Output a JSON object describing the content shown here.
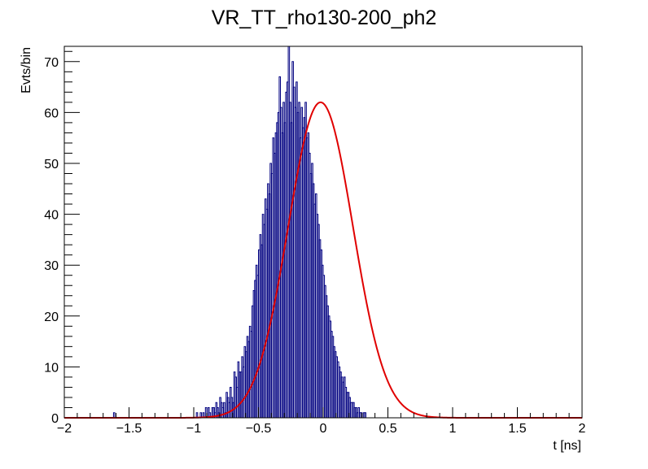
{
  "chart_data": {
    "type": "histogram",
    "title": "VR_TT_rho130-200_ph2",
    "xlabel": "t [ns]",
    "ylabel": "Evts/bin",
    "xlim": [
      -2,
      2
    ],
    "ylim": [
      0,
      73
    ],
    "x_ticks": [
      -2,
      -1.5,
      -1,
      -0.5,
      0,
      0.5,
      1,
      1.5,
      2
    ],
    "x_tick_labels": [
      "−2",
      "−1.5",
      "−1",
      "−0.5",
      "0",
      "0.5",
      "1",
      "1.5",
      "2"
    ],
    "y_ticks": [
      0,
      10,
      20,
      30,
      40,
      50,
      60,
      70
    ],
    "y_tick_labels": [
      "0",
      "10",
      "20",
      "30",
      "40",
      "50",
      "60",
      "70"
    ],
    "grid": false,
    "legend": "none",
    "series": [
      {
        "kind": "histogram",
        "color": "#000080",
        "bin_width": 0.01,
        "bin_centers": [
          -1.615,
          -0.975,
          -0.955,
          -0.945,
          -0.925,
          -0.915,
          -0.905,
          -0.895,
          -0.885,
          -0.875,
          -0.865,
          -0.855,
          -0.845,
          -0.835,
          -0.825,
          -0.815,
          -0.805,
          -0.795,
          -0.785,
          -0.775,
          -0.765,
          -0.755,
          -0.745,
          -0.735,
          -0.725,
          -0.715,
          -0.705,
          -0.695,
          -0.685,
          -0.675,
          -0.665,
          -0.655,
          -0.645,
          -0.635,
          -0.625,
          -0.615,
          -0.605,
          -0.595,
          -0.585,
          -0.575,
          -0.565,
          -0.555,
          -0.545,
          -0.535,
          -0.525,
          -0.515,
          -0.505,
          -0.495,
          -0.485,
          -0.475,
          -0.465,
          -0.455,
          -0.445,
          -0.435,
          -0.425,
          -0.415,
          -0.405,
          -0.395,
          -0.385,
          -0.375,
          -0.365,
          -0.355,
          -0.345,
          -0.335,
          -0.325,
          -0.315,
          -0.305,
          -0.295,
          -0.285,
          -0.275,
          -0.265,
          -0.255,
          -0.245,
          -0.235,
          -0.225,
          -0.215,
          -0.205,
          -0.195,
          -0.185,
          -0.175,
          -0.165,
          -0.155,
          -0.145,
          -0.135,
          -0.125,
          -0.115,
          -0.105,
          -0.095,
          -0.085,
          -0.075,
          -0.065,
          -0.055,
          -0.045,
          -0.035,
          -0.025,
          -0.015,
          -0.005,
          0.005,
          0.015,
          0.025,
          0.035,
          0.045,
          0.055,
          0.065,
          0.075,
          0.085,
          0.095,
          0.105,
          0.115,
          0.125,
          0.135,
          0.145,
          0.155,
          0.165,
          0.175,
          0.185,
          0.195,
          0.205,
          0.215,
          0.225,
          0.235,
          0.245,
          0.255,
          0.265,
          0.275,
          0.285,
          0.295,
          0.305,
          0.315,
          0.325,
          0.335,
          0.345,
          0.355,
          0.365,
          0.375,
          0.385,
          0.395,
          0.405,
          0.415,
          0.425,
          0.435,
          0.445,
          0.455,
          0.465,
          0.475,
          0.485,
          0.495,
          0.505,
          0.515,
          0.525,
          0.535,
          0.545,
          0.555,
          0.565,
          0.575,
          0.585,
          0.595,
          0.605,
          0.615,
          0.625,
          0.635,
          0.645,
          0.655,
          0.665,
          0.675,
          0.685,
          0.695,
          0.705,
          0.715,
          0.725,
          0.735,
          0.745,
          0.755,
          0.765,
          0.775,
          0.785,
          0.795,
          0.805,
          0.815,
          0.825,
          0.835,
          0.845,
          0.855,
          0.865,
          0.875,
          0.885,
          0.895,
          0.905,
          0.915,
          0.925,
          0.935,
          0.945,
          0.955,
          0.965,
          0.975,
          0.985,
          0.995,
          1.005,
          1.015,
          1.025,
          1.035,
          1.045,
          1.055,
          1.065,
          1.075,
          1.085,
          1.095,
          1.105,
          1.115,
          1.125,
          1.135,
          1.145,
          1.155,
          1.165,
          1.175,
          1.185,
          1.195,
          1.205,
          1.215,
          1.225,
          1.235,
          1.245,
          1.255,
          1.265,
          1.275,
          1.285,
          1.295,
          1.305,
          1.315,
          1.325,
          1.335,
          1.345,
          1.355,
          1.365,
          1.375,
          1.385,
          1.395,
          1.405,
          1.415,
          1.425,
          1.435,
          1.445,
          1.455,
          1.465,
          1.475,
          1.485,
          1.495,
          1.505,
          1.515,
          1.525,
          1.535,
          1.545,
          1.555,
          1.565,
          1.575,
          1.585,
          1.595,
          1.605,
          1.615,
          1.625,
          1.635,
          1.645,
          1.655,
          1.665,
          1.675,
          1.685,
          1.695,
          1.705,
          1.715,
          1.725,
          1.735,
          1.745,
          1.755,
          1.765,
          1.775,
          1.785,
          1.795,
          1.805,
          1.815,
          1.825,
          1.835,
          1.845,
          1.855,
          1.865,
          1.875,
          1.885,
          1.895,
          1.905,
          1.915,
          1.925,
          1.935,
          1.945,
          1.955,
          1.965,
          1.975,
          1.985,
          1.995
        ],
        "counts": [
          1,
          1,
          0,
          1,
          1,
          0,
          2,
          0,
          2,
          1,
          0,
          2,
          2,
          1,
          3,
          2,
          1,
          4,
          3,
          2,
          3,
          1,
          5,
          4,
          3,
          6,
          4,
          3,
          9,
          8,
          6,
          11,
          9,
          9,
          12,
          10,
          14,
          13,
          16,
          15,
          18,
          17,
          22,
          25,
          27,
          30,
          28,
          33,
          36,
          34,
          40,
          38,
          43,
          41,
          46,
          44,
          50,
          48,
          55,
          52,
          56,
          58,
          60,
          67,
          61,
          56,
          62,
          58,
          64,
          66,
          73,
          62,
          58,
          70,
          65,
          61,
          66,
          60,
          62,
          55,
          61,
          57,
          59,
          62,
          55,
          56,
          52,
          48,
          50,
          46,
          42,
          44,
          40,
          38,
          35,
          33,
          30,
          28,
          26,
          24,
          22,
          20,
          19,
          17,
          16,
          14,
          13,
          12,
          11,
          10,
          9,
          8,
          7,
          8,
          6,
          5,
          5,
          4,
          3,
          3,
          3,
          2,
          2,
          1,
          2,
          1,
          1,
          0,
          1,
          1,
          0,
          0,
          0,
          0,
          0,
          0,
          0,
          0,
          0,
          0,
          0,
          0,
          0,
          0,
          0,
          0,
          0,
          0,
          0,
          0,
          0,
          0,
          0,
          0,
          0,
          0,
          0,
          0,
          0,
          0,
          0,
          0,
          0,
          0,
          0,
          0,
          0,
          0,
          0,
          0,
          0,
          0,
          0,
          0,
          0,
          0,
          0,
          0,
          0,
          0,
          0,
          0,
          0,
          0,
          0,
          0,
          0,
          0,
          0,
          0,
          0,
          0,
          0,
          0,
          0,
          0,
          0,
          0,
          0,
          0,
          0,
          0,
          0,
          0,
          0,
          0,
          0,
          0,
          0,
          0,
          0,
          0,
          0,
          0,
          0,
          0,
          0,
          0,
          0,
          0,
          0,
          0,
          0,
          0,
          0,
          0,
          0,
          0,
          0,
          0,
          0,
          0,
          0,
          0,
          0,
          0,
          0,
          0,
          0,
          0,
          0,
          0,
          0,
          0,
          0,
          0,
          0,
          0,
          0,
          0,
          0,
          0,
          0,
          0,
          0,
          0,
          0,
          0,
          0,
          0,
          0,
          0,
          0,
          0,
          0,
          0,
          0,
          0,
          0,
          0,
          0,
          0,
          0,
          0,
          0,
          0,
          0,
          0,
          0,
          0,
          0,
          0,
          0,
          0
        ]
      },
      {
        "kind": "line",
        "color": "#e00000",
        "curve": "gaussian",
        "amplitude": 62,
        "mean": -0.02,
        "sigma": 0.25
      }
    ]
  }
}
